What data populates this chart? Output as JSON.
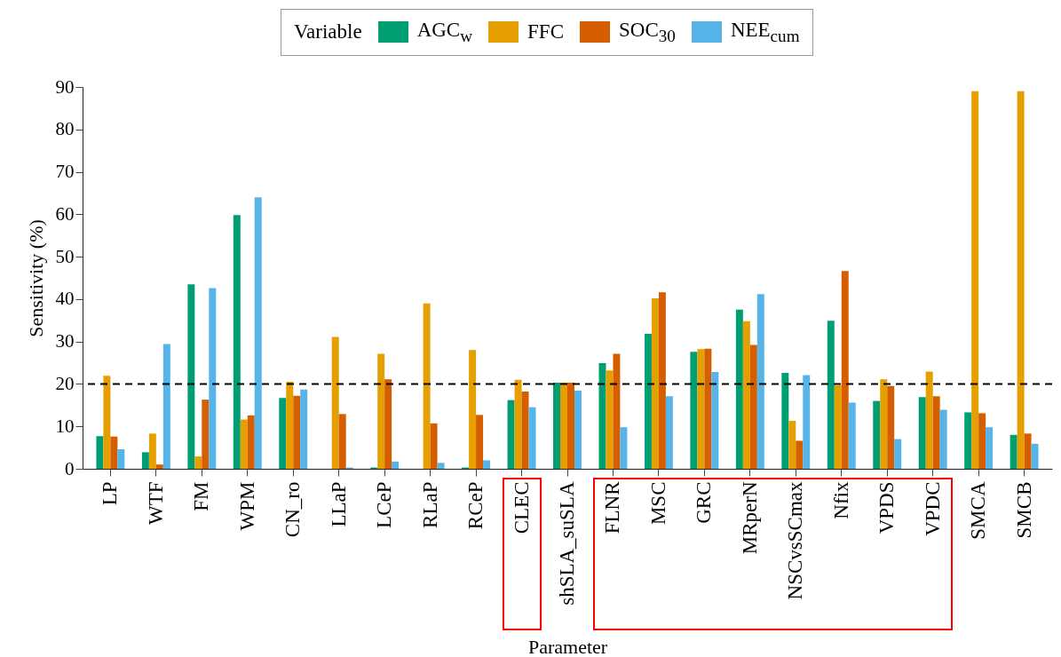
{
  "chart_data": {
    "type": "bar",
    "xlabel": "Parameter",
    "ylabel": "Sensitivity (%)",
    "legend_title": "Variable",
    "legend": "top",
    "grid": false,
    "categories": [
      "LP",
      "WTF",
      "FM",
      "WPM",
      "CN_ro",
      "LLaP",
      "LCeP",
      "RLaP",
      "RCeP",
      "CLEC",
      "shSLA_suSLA",
      "FLNR",
      "MSC",
      "GRC",
      "MRperN",
      "NSCvsSCmax",
      "Nfix",
      "VPDS",
      "VPDC",
      "SMCA",
      "SMCB"
    ],
    "series": [
      {
        "name": "AGC$_{w}$",
        "color": "#009e73",
        "values": [
          7.7,
          3.9,
          43.5,
          59.8,
          16.7,
          0,
          0.3,
          0,
          0.3,
          16.2,
          20.3,
          24.9,
          31.8,
          27.6,
          37.5,
          22.6,
          34.9,
          16.0,
          16.9,
          13.3,
          8.0
        ]
      },
      {
        "name": "FFC",
        "color": "#e69f00",
        "values": [
          21.9,
          8.3,
          2.9,
          11.6,
          20.5,
          31.1,
          27.1,
          39.0,
          28.0,
          21.0,
          20.3,
          23.2,
          40.2,
          28.2,
          34.8,
          11.3,
          19.7,
          21.1,
          22.9,
          89.0,
          89.0
        ]
      },
      {
        "name": "SOC$_{30}$",
        "color": "#d55e00",
        "values": [
          7.6,
          1.0,
          16.3,
          12.6,
          17.2,
          12.9,
          21.1,
          10.7,
          12.7,
          18.2,
          20.3,
          27.1,
          41.6,
          28.3,
          29.2,
          6.6,
          46.6,
          19.5,
          17.1,
          13.1,
          8.3
        ]
      },
      {
        "name": "NEE$_{cum}$",
        "color": "#56b4e9",
        "values": [
          4.6,
          29.4,
          42.6,
          64.0,
          18.7,
          0.3,
          1.7,
          1.4,
          2.0,
          14.5,
          18.4,
          9.8,
          17.1,
          22.8,
          41.2,
          22.1,
          15.6,
          7.0,
          13.9,
          9.8,
          5.9
        ]
      }
    ],
    "ylim": [
      0,
      90
    ],
    "yticks": [
      0,
      10,
      20,
      30,
      40,
      50,
      60,
      70,
      80,
      90
    ],
    "ref_lines": [
      {
        "axis": "y",
        "value": 20,
        "color": "#000000",
        "line_style": "dashed"
      }
    ]
  }
}
